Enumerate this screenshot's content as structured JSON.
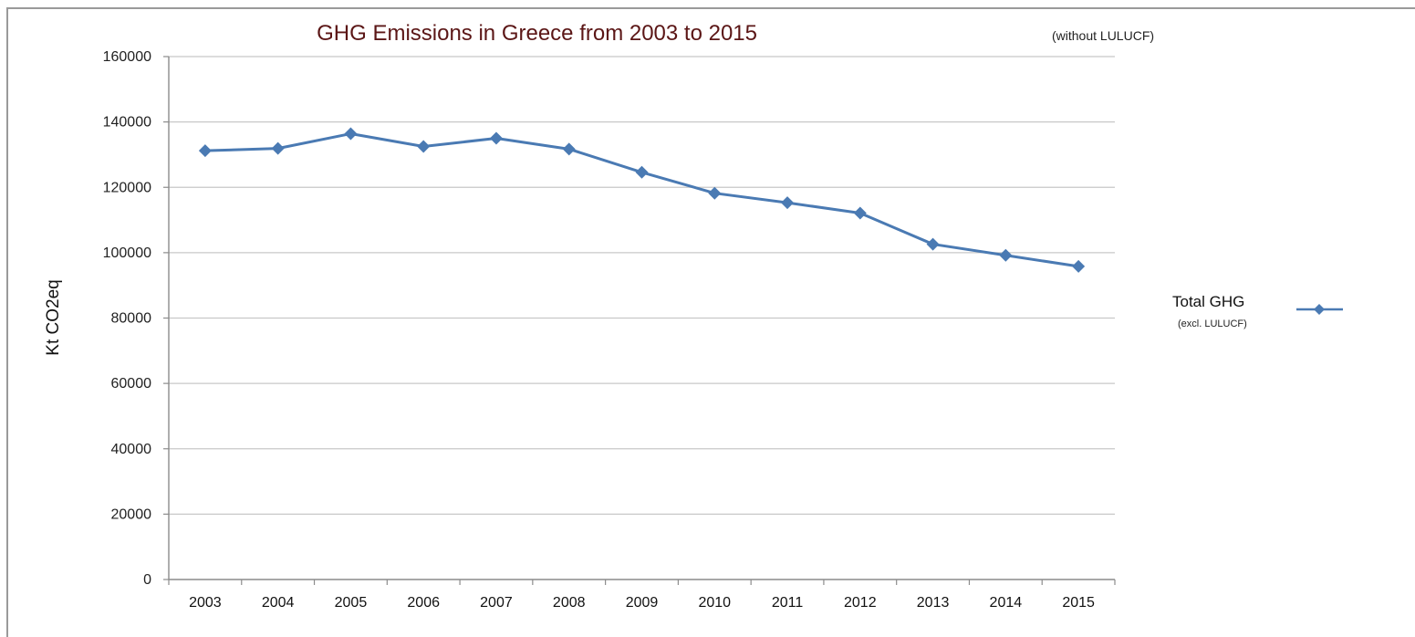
{
  "chart_data": {
    "type": "line",
    "title": "GHG Emissions in Greece from 2003 to 2015",
    "subtitle": "(without LULUCF)",
    "xlabel": "",
    "ylabel": "Kt CO2eq",
    "categories": [
      "2003",
      "2004",
      "2005",
      "2006",
      "2007",
      "2008",
      "2009",
      "2010",
      "2011",
      "2012",
      "2013",
      "2014",
      "2015"
    ],
    "ylim": [
      0,
      160000
    ],
    "yticks": [
      "0",
      "20000",
      "40000",
      "60000",
      "80000",
      "100000",
      "120000",
      "140000",
      "160000"
    ],
    "grid": true,
    "legend_position": "right",
    "series": [
      {
        "name": "Total GHG",
        "name_note": "(excl. LULUCF)",
        "color": "#4a7ab3",
        "marker": "diamond",
        "values": [
          131200,
          131900,
          136400,
          132500,
          135000,
          131700,
          124600,
          118200,
          115300,
          112100,
          102600,
          99200,
          95800
        ]
      }
    ]
  }
}
